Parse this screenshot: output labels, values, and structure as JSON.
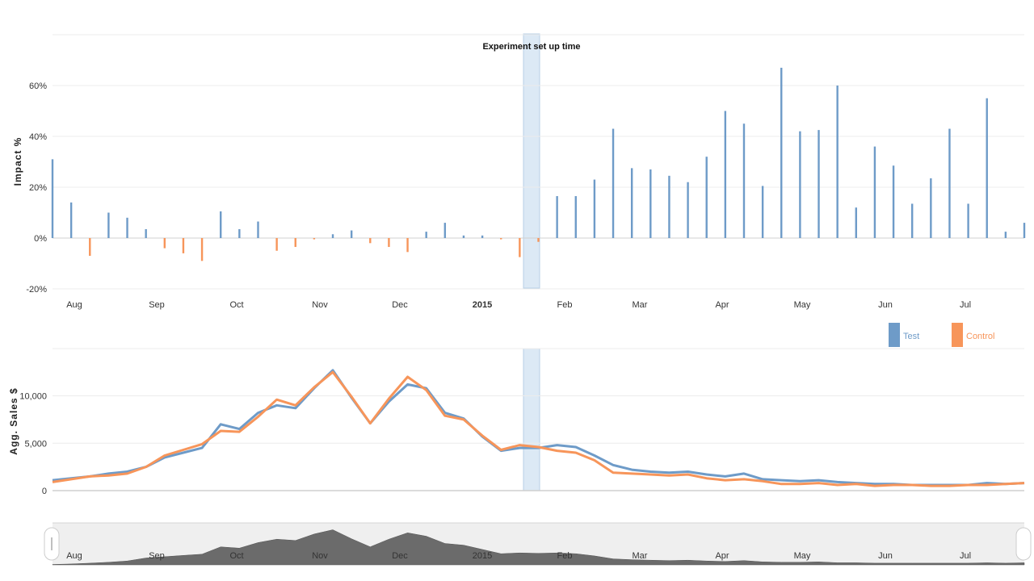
{
  "colors": {
    "test": "#6e9bc8",
    "control": "#f7955a",
    "highlight": "#dce9f5",
    "navigator": "#6b6b6b"
  },
  "chart_data": [
    {
      "type": "bar",
      "ylabel": "Impact %",
      "annotation": "Experiment set up time",
      "ylim": [
        -20,
        80
      ],
      "yticks": [
        "-20%",
        "0%",
        "20%",
        "40%",
        "60%"
      ],
      "ytick_values": [
        -20,
        0,
        20,
        40,
        60
      ],
      "xticks": [
        "Aug",
        "Sep",
        "Oct",
        "Nov",
        "Dec",
        "2015",
        "Feb",
        "Mar",
        "Apr",
        "May",
        "Jun",
        "Jul"
      ],
      "grid": true,
      "series": [
        {
          "name": "Test",
          "values": [
            31,
            14,
            0,
            10,
            8,
            3.5,
            0,
            0,
            0,
            10.5,
            3.5,
            6.5,
            0,
            0,
            0,
            1.5,
            3,
            0,
            0,
            0,
            2.5,
            6,
            1,
            1,
            0,
            0,
            0,
            16.5,
            16.5,
            23,
            43,
            27.5,
            27,
            24.5,
            22,
            32,
            50,
            45,
            20.5,
            67,
            42,
            42.5,
            60,
            12,
            36,
            28.5,
            13.5,
            23.5,
            43,
            13.5,
            55,
            2.5,
            6
          ]
        },
        {
          "name": "Control",
          "values": [
            0,
            0,
            -7,
            0,
            0,
            0,
            -4,
            -6,
            -9,
            0,
            0,
            0,
            -5,
            -3.5,
            -0.5,
            0,
            0,
            -2,
            -3.5,
            -5.5,
            0,
            0,
            0,
            0,
            -0.5,
            -7.5,
            -1.5,
            0,
            0,
            0,
            0,
            0,
            0,
            0,
            0,
            0,
            0,
            0,
            0,
            0,
            0,
            0,
            0,
            0,
            0,
            0,
            0,
            0,
            0,
            0,
            0,
            0,
            0
          ]
        }
      ]
    },
    {
      "type": "line",
      "ylabel": "Agg. Sales $",
      "ylim": [
        0,
        14000
      ],
      "yticks": [
        "0",
        "5,000",
        "10,000"
      ],
      "ytick_values": [
        0,
        5000,
        10000
      ],
      "grid": true,
      "legend": "top-right",
      "series": [
        {
          "name": "Test",
          "values": [
            1100,
            1300,
            1500,
            1800,
            2000,
            2500,
            3500,
            4000,
            4500,
            7000,
            6500,
            8200,
            9000,
            8700,
            10800,
            12700,
            9800,
            7100,
            9400,
            11200,
            10800,
            8200,
            7600,
            5700,
            4200,
            4500,
            4500,
            4800,
            4600,
            3700,
            2700,
            2200,
            2000,
            1900,
            2000,
            1700,
            1500,
            1800,
            1200,
            1100,
            1000,
            1100,
            900,
            800,
            700,
            700,
            600,
            600,
            600,
            600,
            800,
            700,
            800
          ]
        },
        {
          "name": "Control",
          "values": [
            900,
            1200,
            1500,
            1600,
            1800,
            2500,
            3700,
            4300,
            4900,
            6300,
            6200,
            7800,
            9600,
            9000,
            10900,
            12500,
            9900,
            7100,
            9700,
            12000,
            10600,
            7900,
            7500,
            5800,
            4300,
            4800,
            4600,
            4200,
            4000,
            3200,
            1900,
            1800,
            1700,
            1600,
            1700,
            1300,
            1100,
            1200,
            1000,
            700,
            700,
            800,
            600,
            700,
            500,
            600,
            600,
            500,
            500,
            600,
            600,
            700,
            800
          ]
        }
      ]
    },
    {
      "type": "area",
      "role": "navigator",
      "xticks": [
        "Aug",
        "Sep",
        "Oct",
        "Nov",
        "Dec",
        "2015",
        "Feb",
        "Mar",
        "Apr",
        "May",
        "Jun",
        "Jul"
      ],
      "values": [
        100,
        200,
        400,
        600,
        900,
        1600,
        1900,
        2200,
        2500,
        4200,
        3900,
        5200,
        6000,
        5700,
        7200,
        8200,
        6100,
        4200,
        6000,
        7500,
        6700,
        5000,
        4600,
        3600,
        2600,
        2800,
        2700,
        2800,
        2600,
        2100,
        1400,
        1200,
        1100,
        1000,
        1100,
        900,
        800,
        1000,
        700,
        600,
        600,
        700,
        500,
        500,
        400,
        400,
        400,
        400,
        400,
        400,
        500,
        400,
        500
      ]
    }
  ]
}
